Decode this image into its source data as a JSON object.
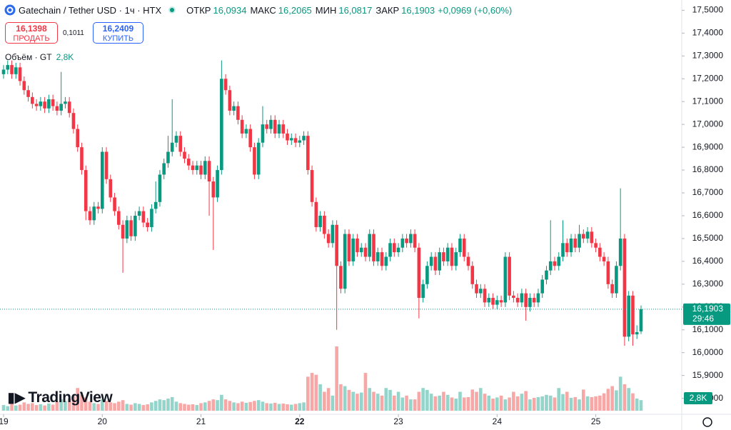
{
  "chart_data": {
    "type": "candlestick",
    "title": "Gatechain / Tether USD · 1ч · HTX",
    "ohlc_header": [
      {
        "label": "ОТКР",
        "value": "16,0934"
      },
      {
        "label": "МАКС",
        "value": "16,2065"
      },
      {
        "label": "МИН",
        "value": "16,0817"
      },
      {
        "label": "ЗАКР",
        "value": "16,1903"
      }
    ],
    "change": "+0,0969 (+0,60%)",
    "sell": {
      "price": "16,1398",
      "label": "ПРОДАТЬ"
    },
    "spread": "0,1011",
    "buy": {
      "price": "16,2409",
      "label": "КУПИТЬ"
    },
    "volume_title": "Объём · GT",
    "volume_label": "2,8K",
    "watermark": "TradingView",
    "price_tag": {
      "value": 16.1903,
      "label": "16,1903",
      "timer": "29:46"
    },
    "up_color": "#089981",
    "down_color": "#f23645",
    "up_volume_color": "#93d5ca",
    "down_volume_color": "#f7a8a6",
    "xlim": [
      -0.87,
      164.9
    ],
    "ylim": [
      15.73,
      17.545
    ],
    "xticks": [
      {
        "value": 0,
        "label": "19"
      },
      {
        "value": 24,
        "label": "20"
      },
      {
        "value": 48,
        "label": "21"
      },
      {
        "value": 72,
        "label": "22"
      },
      {
        "value": 96,
        "label": "23"
      },
      {
        "value": 120,
        "label": "24"
      },
      {
        "value": 144,
        "label": "25"
      }
    ],
    "yticks": [
      {
        "value": 17.5,
        "label": "17,5000"
      },
      {
        "value": 17.4,
        "label": "17,4000"
      },
      {
        "value": 17.3,
        "label": "17,3000"
      },
      {
        "value": 17.2,
        "label": "17,2000"
      },
      {
        "value": 17.1,
        "label": "17,1000"
      },
      {
        "value": 17.0,
        "label": "17,0000"
      },
      {
        "value": 16.9,
        "label": "16,9000"
      },
      {
        "value": 16.8,
        "label": "16,8000"
      },
      {
        "value": 16.7,
        "label": "16,7000"
      },
      {
        "value": 16.6,
        "label": "16,6000"
      },
      {
        "value": 16.5,
        "label": "16,5000"
      },
      {
        "value": 16.4,
        "label": "16,4000"
      },
      {
        "value": 16.3,
        "label": "16,3000"
      },
      {
        "value": 16.2,
        "label": "16,2000"
      },
      {
        "value": 16.1,
        "label": "16,1000"
      },
      {
        "value": 16.0,
        "label": "16,0000"
      },
      {
        "value": 15.9,
        "label": "15,9000"
      },
      {
        "value": 15.8,
        "label": "15,8000"
      }
    ],
    "open": [
      17.22,
      17.24,
      17.26,
      17.22,
      17.25,
      17.19,
      17.15,
      17.12,
      17.09,
      17.08,
      17.1,
      17.07,
      17.11,
      17.08,
      17.06,
      17.09,
      17.1,
      17.05,
      16.98,
      16.9,
      16.8,
      16.62,
      16.58,
      16.64,
      16.63,
      16.88,
      16.76,
      16.68,
      16.62,
      16.56,
      16.5,
      16.58,
      16.51,
      16.6,
      16.62,
      16.57,
      16.55,
      16.63,
      16.66,
      16.78,
      16.83,
      16.88,
      16.92,
      16.95,
      16.88,
      16.85,
      16.82,
      16.8,
      16.82,
      16.78,
      16.84,
      16.75,
      16.68,
      16.8,
      17.2,
      17.15,
      17.06,
      17.08,
      17.02,
      16.96,
      16.98,
      16.9,
      16.78,
      16.92,
      17.0,
      16.98,
      17.02,
      16.96,
      17.0,
      16.96,
      16.93,
      16.94,
      16.92,
      16.93,
      16.95,
      16.8,
      16.66,
      16.55,
      16.6,
      16.52,
      16.48,
      16.56,
      16.38,
      16.28,
      16.52,
      16.4,
      16.5,
      16.44,
      16.46,
      16.42,
      16.52,
      16.4,
      16.44,
      16.38,
      16.42,
      16.48,
      16.44,
      16.46,
      16.5,
      16.48,
      16.52,
      16.46,
      16.24,
      16.3,
      16.38,
      16.42,
      16.36,
      16.44,
      16.4,
      16.46,
      16.38,
      16.44,
      16.5,
      16.42,
      16.38,
      16.3,
      16.26,
      16.28,
      16.22,
      16.24,
      16.21,
      16.23,
      16.22,
      16.42,
      16.25,
      16.24,
      16.22,
      16.26,
      16.2,
      16.24,
      16.22,
      16.26,
      16.32,
      16.36,
      16.4,
      16.38,
      16.42,
      16.48,
      16.44,
      16.5,
      16.46,
      16.52,
      16.5,
      16.53,
      16.48,
      16.46,
      16.42,
      16.4,
      16.3,
      16.26,
      16.38,
      16.5,
      16.07,
      16.25,
      16.08,
      16.0934
    ],
    "high": [
      17.26,
      17.28,
      17.28,
      17.27,
      17.27,
      17.21,
      17.17,
      17.14,
      17.11,
      17.12,
      17.12,
      17.13,
      17.13,
      17.1,
      17.23,
      17.12,
      17.12,
      17.07,
      17.0,
      16.92,
      16.82,
      16.64,
      16.66,
      16.66,
      16.9,
      16.9,
      16.78,
      16.7,
      16.64,
      16.58,
      16.6,
      16.6,
      16.62,
      16.64,
      16.64,
      16.59,
      16.65,
      16.75,
      16.8,
      16.85,
      16.95,
      17.11,
      16.97,
      16.97,
      16.9,
      16.87,
      16.84,
      16.84,
      16.84,
      16.86,
      16.86,
      16.77,
      16.82,
      17.28,
      17.22,
      17.17,
      17.1,
      17.1,
      17.04,
      17.0,
      17.0,
      16.92,
      16.94,
      17.08,
      17.02,
      17.04,
      17.04,
      17.02,
      17.02,
      16.98,
      16.96,
      16.96,
      16.95,
      16.97,
      16.97,
      16.82,
      16.68,
      16.62,
      16.62,
      16.54,
      16.58,
      16.58,
      16.4,
      16.54,
      16.54,
      16.52,
      16.52,
      16.48,
      16.48,
      16.54,
      16.54,
      16.46,
      16.46,
      16.44,
      16.5,
      16.5,
      16.48,
      16.52,
      16.52,
      16.54,
      16.54,
      16.48,
      16.32,
      16.4,
      16.44,
      16.44,
      16.46,
      16.46,
      16.48,
      16.48,
      16.46,
      16.52,
      16.52,
      16.44,
      16.4,
      16.32,
      16.3,
      16.3,
      16.26,
      16.26,
      16.25,
      16.25,
      16.44,
      16.44,
      16.27,
      16.26,
      16.28,
      16.28,
      16.26,
      16.26,
      16.28,
      16.34,
      16.38,
      16.58,
      16.42,
      16.44,
      16.58,
      16.5,
      16.52,
      16.52,
      16.56,
      16.54,
      16.55,
      16.55,
      16.5,
      16.48,
      16.44,
      16.42,
      16.32,
      16.4,
      16.72,
      16.52,
      16.27,
      16.27,
      16.12,
      16.2065
    ],
    "low": [
      17.2,
      17.22,
      17.2,
      17.2,
      17.17,
      17.13,
      17.1,
      17.07,
      17.06,
      17.06,
      17.05,
      17.05,
      17.06,
      17.04,
      17.04,
      17.07,
      17.03,
      16.96,
      16.88,
      16.78,
      16.58,
      16.56,
      16.56,
      16.61,
      16.61,
      16.74,
      16.66,
      16.6,
      16.54,
      16.35,
      16.48,
      16.49,
      16.49,
      16.58,
      16.55,
      16.53,
      16.53,
      16.61,
      16.64,
      16.76,
      16.81,
      16.86,
      16.9,
      16.86,
      16.83,
      16.8,
      16.78,
      16.78,
      16.76,
      16.76,
      16.6,
      16.45,
      16.66,
      16.78,
      17.13,
      17.04,
      17.04,
      17.0,
      16.94,
      16.94,
      16.88,
      16.76,
      16.76,
      16.9,
      16.96,
      16.96,
      16.94,
      16.94,
      16.94,
      16.91,
      16.91,
      16.9,
      16.9,
      16.91,
      16.78,
      16.64,
      16.53,
      16.53,
      16.5,
      16.46,
      16.46,
      16.1,
      16.26,
      16.26,
      16.38,
      16.38,
      16.42,
      16.42,
      16.4,
      16.4,
      16.38,
      16.38,
      16.36,
      16.36,
      16.4,
      16.42,
      16.42,
      16.44,
      16.46,
      16.46,
      16.44,
      16.15,
      16.22,
      16.28,
      16.36,
      16.34,
      16.34,
      16.38,
      16.38,
      16.36,
      16.36,
      16.42,
      16.4,
      16.36,
      16.28,
      16.24,
      16.24,
      16.2,
      16.2,
      16.19,
      16.19,
      16.2,
      16.2,
      16.23,
      16.22,
      16.2,
      16.2,
      16.14,
      16.18,
      16.2,
      16.2,
      16.24,
      16.3,
      16.34,
      16.36,
      16.36,
      16.4,
      16.42,
      16.42,
      16.44,
      16.44,
      16.48,
      16.48,
      16.46,
      16.44,
      16.4,
      16.38,
      16.28,
      16.24,
      16.24,
      16.36,
      16.03,
      16.05,
      16.03,
      16.06,
      16.0817
    ],
    "close": [
      17.24,
      17.26,
      17.22,
      17.25,
      17.19,
      17.15,
      17.12,
      17.09,
      17.08,
      17.1,
      17.07,
      17.11,
      17.08,
      17.06,
      17.09,
      17.1,
      17.05,
      16.98,
      16.9,
      16.8,
      16.62,
      16.58,
      16.64,
      16.63,
      16.88,
      16.76,
      16.68,
      16.62,
      16.56,
      16.5,
      16.58,
      16.51,
      16.6,
      16.62,
      16.57,
      16.55,
      16.63,
      16.66,
      16.78,
      16.83,
      16.88,
      16.92,
      16.95,
      16.88,
      16.85,
      16.82,
      16.8,
      16.82,
      16.78,
      16.84,
      16.75,
      16.68,
      16.8,
      17.2,
      17.15,
      17.06,
      17.08,
      17.02,
      16.96,
      16.98,
      16.9,
      16.78,
      16.92,
      17.0,
      16.98,
      17.02,
      16.96,
      17.0,
      16.96,
      16.93,
      16.94,
      16.92,
      16.93,
      16.95,
      16.8,
      16.66,
      16.55,
      16.6,
      16.52,
      16.48,
      16.56,
      16.38,
      16.28,
      16.52,
      16.4,
      16.5,
      16.44,
      16.46,
      16.42,
      16.52,
      16.4,
      16.44,
      16.38,
      16.42,
      16.48,
      16.44,
      16.46,
      16.5,
      16.48,
      16.52,
      16.46,
      16.24,
      16.3,
      16.38,
      16.42,
      16.36,
      16.44,
      16.4,
      16.46,
      16.38,
      16.44,
      16.5,
      16.42,
      16.38,
      16.3,
      16.26,
      16.28,
      16.22,
      16.24,
      16.21,
      16.23,
      16.22,
      16.42,
      16.25,
      16.24,
      16.22,
      16.26,
      16.2,
      16.24,
      16.22,
      16.26,
      16.32,
      16.36,
      16.4,
      16.38,
      16.42,
      16.48,
      16.44,
      16.5,
      16.46,
      16.52,
      16.5,
      16.53,
      16.48,
      16.46,
      16.42,
      16.4,
      16.3,
      16.26,
      16.38,
      16.5,
      16.07,
      16.25,
      16.08,
      16.09,
      16.1903
    ],
    "volume": [
      1500,
      1200,
      1800,
      1400,
      1600,
      2200,
      1800,
      2000,
      1500,
      1700,
      1400,
      1900,
      1600,
      2500,
      3000,
      2600,
      3200,
      3800,
      6000,
      4200,
      3500,
      2400,
      2000,
      1800,
      3000,
      2600,
      2200,
      2000,
      2400,
      2800,
      1800,
      1600,
      2000,
      1800,
      1500,
      1700,
      2200,
      2600,
      3000,
      2800,
      3200,
      3600,
      2400,
      2000,
      1800,
      1600,
      1700,
      1500,
      2000,
      2200,
      2600,
      3000,
      2800,
      4200,
      3000,
      2600,
      2200,
      2000,
      2400,
      2100,
      2300,
      2600,
      2800,
      2400,
      2000,
      1900,
      2100,
      1800,
      1900,
      1700,
      1600,
      1800,
      2000,
      2200,
      9000,
      10000,
      9500,
      7000,
      5000,
      6000,
      4000,
      17000,
      7000,
      6500,
      5500,
      5000,
      4500,
      4800,
      10000,
      6000,
      5000,
      4500,
      4000,
      6000,
      5500,
      4000,
      5000,
      3500,
      4000,
      3000,
      3000,
      5000,
      6000,
      5500,
      4500,
      3800,
      4000,
      5000,
      4200,
      3500,
      3200,
      5000,
      3500,
      3600,
      5600,
      5000,
      6000,
      4500,
      4000,
      3200,
      3500,
      4000,
      3000,
      3500,
      5000,
      3800,
      4500,
      5200,
      3000,
      3400,
      3600,
      3800,
      4200,
      4000,
      3500,
      6000,
      4400,
      5000,
      3400,
      3600,
      3000,
      5600,
      3800,
      3600,
      3800,
      4000,
      4600,
      5800,
      6500,
      5400,
      9000,
      7000,
      6000,
      4600,
      3200,
      2800
    ]
  }
}
